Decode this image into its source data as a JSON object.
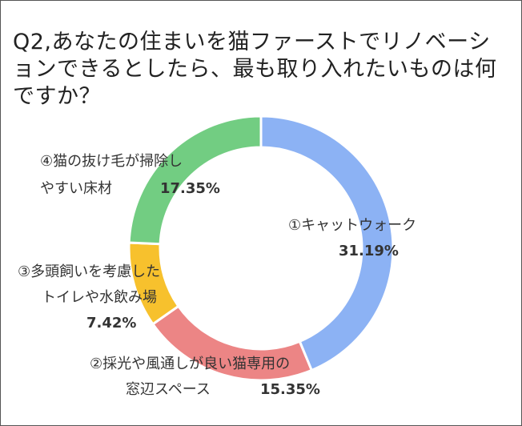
{
  "title": "Q2,あなたの住まいを猫ファーストでリノベーションできるとしたら、最も取り入れたいものは何ですか？",
  "chart_data": {
    "type": "pie",
    "donut": true,
    "title": "Q2,あなたの住まいを猫ファーストでリノベーションできるとしたら、最も取り入れたいものは何ですか？",
    "categories": [
      "①キャットウォーク",
      "②採光や風通しが良い猫専用の窓辺スペース",
      "③多頭飼いを考慮したトイレや水飲み場",
      "④猫の抜け毛が掃除しやすい床材"
    ],
    "values": [
      31.19,
      15.35,
      7.42,
      17.35
    ],
    "value_labels": [
      "31.19%",
      "15.35%",
      "7.42%",
      "17.35%"
    ],
    "colors": [
      "#8cb2f4",
      "#ec8585",
      "#f7c12d",
      "#72cd82"
    ],
    "label_lines": [
      [
        "①キャットウォーク"
      ],
      [
        "②採光や風通しが良い猫専用の",
        "窓辺スペース"
      ],
      [
        "③多頭飼いを考慮した",
        "トイレや水飲み場"
      ],
      [
        "④猫の抜け毛が掃除し",
        "やすい床材"
      ]
    ]
  }
}
